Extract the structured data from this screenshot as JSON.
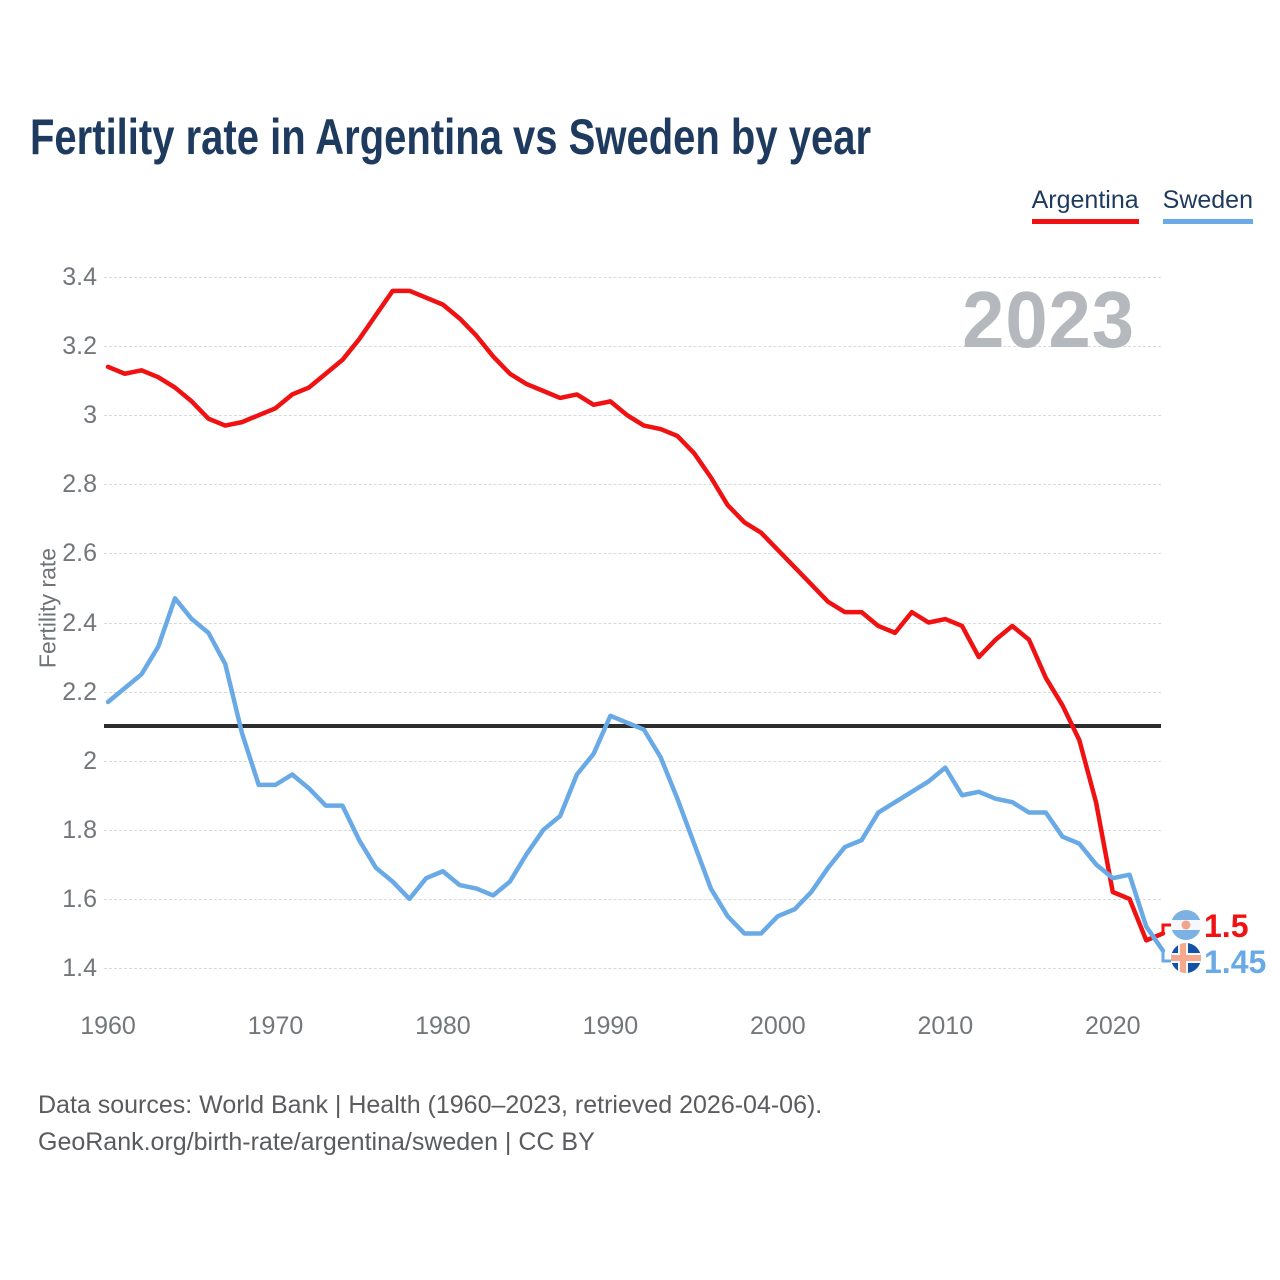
{
  "title": "Fertility rate in Argentina vs Sweden by year",
  "watermark": "2023",
  "legend": {
    "items": [
      {
        "label": "Argentina",
        "color": "#f01212"
      },
      {
        "label": "Sweden",
        "color": "#69aae6"
      }
    ]
  },
  "y_axis": {
    "label": "Fertility rate",
    "ticks": [
      "3.4",
      "3.2",
      "3",
      "2.8",
      "2.6",
      "2.4",
      "2.2",
      "2",
      "1.8",
      "1.6",
      "1.4"
    ]
  },
  "x_axis": {
    "ticks": [
      "1960",
      "1970",
      "1980",
      "1990",
      "2000",
      "2010",
      "2020"
    ]
  },
  "end_labels": [
    {
      "value": "1.5",
      "color": "#f01212",
      "flag": "argentina"
    },
    {
      "value": "1.45",
      "color": "#69aae6",
      "flag": "sweden"
    }
  ],
  "footer": {
    "line1": "Data sources: World Bank | Health (1960–2023, retrieved 2026-04-06).",
    "line2": "GeoRank.org/birth-rate/argentina/sweden | CC BY"
  },
  "chart_data": {
    "type": "line",
    "title": "Fertility rate in Argentina vs Sweden by year",
    "xlabel": "",
    "ylabel": "Fertility rate",
    "xlim": [
      1960,
      2023
    ],
    "ylim": [
      1.4,
      3.4
    ],
    "grid": true,
    "legend_position": "top-right",
    "reference_line": {
      "value": 2.1,
      "color": "#2b2d2e"
    },
    "x": [
      1960,
      1961,
      1962,
      1963,
      1964,
      1965,
      1966,
      1967,
      1968,
      1969,
      1970,
      1971,
      1972,
      1973,
      1974,
      1975,
      1976,
      1977,
      1978,
      1979,
      1980,
      1981,
      1982,
      1983,
      1984,
      1985,
      1986,
      1987,
      1988,
      1989,
      1990,
      1991,
      1992,
      1993,
      1994,
      1995,
      1996,
      1997,
      1998,
      1999,
      2000,
      2001,
      2002,
      2003,
      2004,
      2005,
      2006,
      2007,
      2008,
      2009,
      2010,
      2011,
      2012,
      2013,
      2014,
      2015,
      2016,
      2017,
      2018,
      2019,
      2020,
      2021,
      2022,
      2023
    ],
    "series": [
      {
        "name": "Argentina",
        "color": "#f01212",
        "values": [
          3.14,
          3.12,
          3.13,
          3.11,
          3.08,
          3.04,
          2.99,
          2.97,
          2.98,
          3.0,
          3.02,
          3.06,
          3.08,
          3.12,
          3.16,
          3.22,
          3.29,
          3.36,
          3.36,
          3.34,
          3.32,
          3.28,
          3.23,
          3.17,
          3.12,
          3.09,
          3.07,
          3.05,
          3.06,
          3.03,
          3.04,
          3.0,
          2.97,
          2.96,
          2.94,
          2.89,
          2.82,
          2.74,
          2.69,
          2.66,
          2.61,
          2.56,
          2.51,
          2.46,
          2.43,
          2.43,
          2.39,
          2.37,
          2.43,
          2.4,
          2.41,
          2.39,
          2.3,
          2.35,
          2.39,
          2.35,
          2.24,
          2.16,
          2.06,
          1.88,
          1.62,
          1.6,
          1.48,
          1.5
        ]
      },
      {
        "name": "Sweden",
        "color": "#69aae6",
        "values": [
          2.17,
          2.21,
          2.25,
          2.33,
          2.47,
          2.41,
          2.37,
          2.28,
          2.08,
          1.93,
          1.93,
          1.96,
          1.92,
          1.87,
          1.87,
          1.77,
          1.69,
          1.65,
          1.6,
          1.66,
          1.68,
          1.64,
          1.63,
          1.61,
          1.65,
          1.73,
          1.8,
          1.84,
          1.96,
          2.02,
          2.13,
          2.11,
          2.09,
          2.01,
          1.89,
          1.76,
          1.63,
          1.55,
          1.5,
          1.5,
          1.55,
          1.57,
          1.62,
          1.69,
          1.75,
          1.77,
          1.85,
          1.88,
          1.91,
          1.94,
          1.98,
          1.9,
          1.91,
          1.89,
          1.88,
          1.85,
          1.85,
          1.78,
          1.76,
          1.7,
          1.66,
          1.67,
          1.52,
          1.45
        ]
      }
    ]
  }
}
